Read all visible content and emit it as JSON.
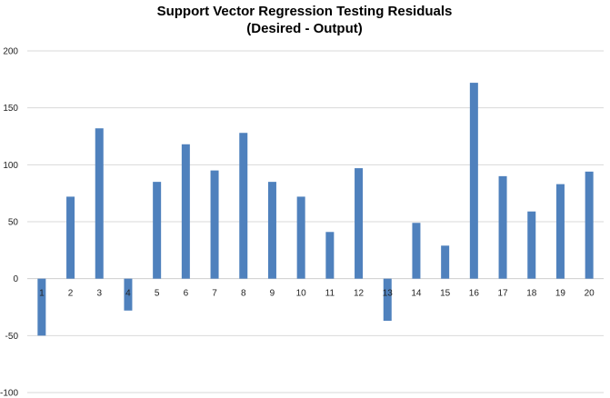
{
  "chart_data": {
    "type": "bar",
    "title_line1": "Support Vector Regression Testing Residuals",
    "title_line2": "(Desired - Output)",
    "xlabel": "",
    "ylabel": "",
    "categories": [
      "1",
      "2",
      "3",
      "4",
      "5",
      "6",
      "7",
      "8",
      "9",
      "10",
      "11",
      "12",
      "13",
      "14",
      "15",
      "16",
      "17",
      "18",
      "19",
      "20"
    ],
    "values": [
      -50,
      72,
      132,
      -28,
      85,
      118,
      95,
      128,
      85,
      72,
      41,
      97,
      -37,
      49,
      29,
      172,
      90,
      59,
      83,
      94
    ],
    "ylim": [
      -100,
      200
    ],
    "yticks": [
      -100,
      -50,
      0,
      50,
      100,
      150,
      200
    ],
    "ytick_labels": [
      "-100",
      "-50",
      "0",
      "50",
      "100",
      "150",
      "200"
    ],
    "grid": true,
    "legend": "none",
    "bar_color": "#4f81bd"
  }
}
